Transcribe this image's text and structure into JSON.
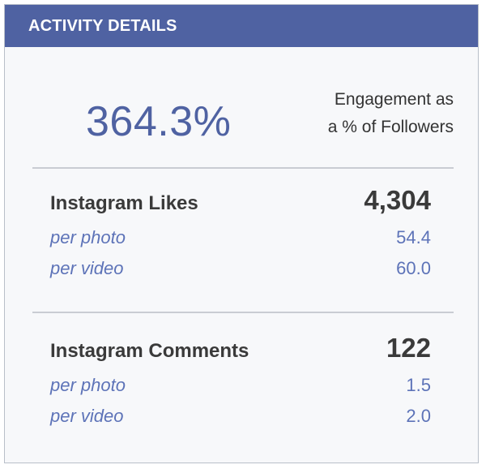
{
  "header": {
    "title": "ACTIVITY DETAILS"
  },
  "summary": {
    "engagement_value": "364.3%",
    "label_line1": "Engagement as",
    "label_line2": "a % of Followers"
  },
  "likes": {
    "title": "Instagram Likes",
    "total": "4,304",
    "rows": [
      {
        "label": "per photo",
        "value": "54.4"
      },
      {
        "label": "per video",
        "value": "60.0"
      }
    ]
  },
  "comments": {
    "title": "Instagram Comments",
    "total": "122",
    "rows": [
      {
        "label": "per photo",
        "value": "1.5"
      },
      {
        "label": "per video",
        "value": "2.0"
      }
    ]
  },
  "colors": {
    "header_bg": "#4f62a2",
    "accent_blue": "#4f62a2",
    "sub_text": "#5d73b8",
    "main_text": "#3a3a3a"
  }
}
